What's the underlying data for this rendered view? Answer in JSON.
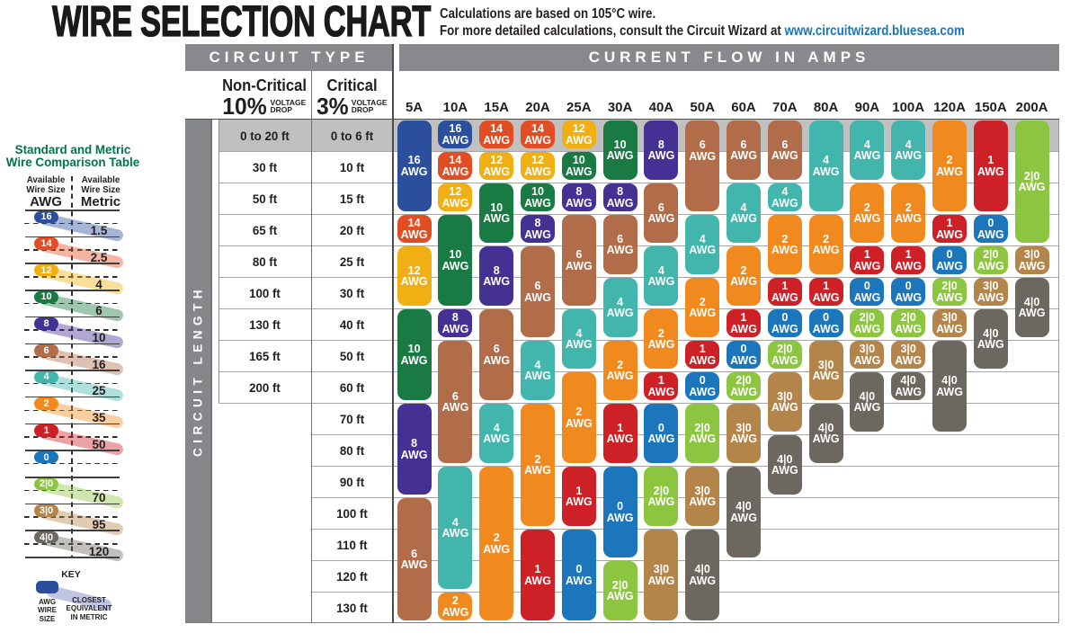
{
  "page_title": "WIRE SELECTION CHART",
  "notes": {
    "line1": "Calculations are based on 105°C wire.",
    "line2_prefix": "For more detailed calculations, consult the Circuit Wizard at ",
    "line2_link": "www.circuitwizard.bluesea.com",
    "link_color": "#1b75bc"
  },
  "comparison_table": {
    "title_line1": "Standard and Metric",
    "title_line2": "Wire Comparison Table",
    "title_color": "#00734a",
    "left_header_line1": "Available",
    "left_header_line2": "Wire Size",
    "left_unit": "AWG",
    "right_header_line1": "Available",
    "right_header_line2": "Wire Size",
    "right_unit": "Metric",
    "rows": [
      {
        "awg": "16",
        "metric": "1.5"
      },
      {
        "awg": "14",
        "metric": "2.5"
      },
      {
        "awg": "12",
        "metric": "4"
      },
      {
        "awg": "10",
        "metric": "6"
      },
      {
        "awg": "8",
        "metric": "10"
      },
      {
        "awg": "6",
        "metric": "16"
      },
      {
        "awg": "4",
        "metric": "25"
      },
      {
        "awg": "2",
        "metric": "35"
      },
      {
        "awg": "1",
        "metric": "50"
      },
      {
        "awg": "0",
        "metric": null
      },
      {
        "awg": "2|0",
        "metric": "70"
      },
      {
        "awg": "3|0",
        "metric": "95"
      },
      {
        "awg": "4|0",
        "metric": "120"
      }
    ],
    "key": {
      "label": "KEY",
      "awg_caption_lines": [
        "AWG",
        "WIRE",
        "SIZE"
      ],
      "metric_caption_lines": [
        "CLOSEST",
        "EQUIVALENT",
        "IN METRIC"
      ],
      "band_color": "#bfc5e3"
    }
  },
  "awg_colors": {
    "16": "#2b4f9c",
    "14": "#e24e24",
    "12": "#f0b013",
    "10": "#1a7a43",
    "8": "#453093",
    "6": "#b16c4a",
    "4": "#42b6ac",
    "2": "#f18a1e",
    "1": "#ce2127",
    "0": "#1c76bc",
    "2|0": "#8cc640",
    "3|0": "#b4854b",
    "4|0": "#6d685f"
  },
  "grays": {
    "header_band": "#87898c",
    "first_row_band": "#c1c0c0",
    "length_bar": "#85878a"
  },
  "chart_data": {
    "type": "table",
    "title": "WIRE SELECTION CHART",
    "circuit_type_header": "CIRCUIT TYPE",
    "current_flow_header": "CURRENT FLOW IN AMPS",
    "circuit_length_label": "CIRCUIT LENGTH",
    "non_critical": {
      "name": "Non-Critical",
      "percent": "10%",
      "qualifier_line1": "VOLTAGE",
      "qualifier_line2": "DROP"
    },
    "critical": {
      "name": "Critical",
      "percent": "3%",
      "qualifier_line1": "VOLTAGE",
      "qualifier_line2": "DROP"
    },
    "amp_columns": [
      "5A",
      "10A",
      "15A",
      "20A",
      "25A",
      "30A",
      "40A",
      "50A",
      "60A",
      "70A",
      "80A",
      "90A",
      "100A",
      "120A",
      "150A",
      "200A"
    ],
    "length_rows": [
      {
        "non_critical": "0 to 20 ft",
        "critical": "0 to 6 ft"
      },
      {
        "non_critical": "30 ft",
        "critical": "10 ft"
      },
      {
        "non_critical": "50 ft",
        "critical": "15 ft"
      },
      {
        "non_critical": "65 ft",
        "critical": "20 ft"
      },
      {
        "non_critical": "80 ft",
        "critical": "25 ft"
      },
      {
        "non_critical": "100 ft",
        "critical": "30 ft"
      },
      {
        "non_critical": "130 ft",
        "critical": "40 ft"
      },
      {
        "non_critical": "165 ft",
        "critical": "50 ft"
      },
      {
        "non_critical": "200 ft",
        "critical": "60 ft"
      },
      {
        "non_critical": null,
        "critical": "70 ft"
      },
      {
        "non_critical": null,
        "critical": "80 ft"
      },
      {
        "non_critical": null,
        "critical": "90 ft"
      },
      {
        "non_critical": null,
        "critical": "100 ft"
      },
      {
        "non_critical": null,
        "critical": "110 ft"
      },
      {
        "non_critical": null,
        "critical": "120 ft"
      },
      {
        "non_critical": null,
        "critical": "130 ft"
      }
    ],
    "awg_unit_label": "AWG",
    "selections": [
      {
        "amps": "5A",
        "pills": [
          {
            "awg": "16",
            "from_row": 1,
            "to_row": 3
          },
          {
            "awg": "14",
            "from_row": 4,
            "to_row": 4
          },
          {
            "awg": "12",
            "from_row": 5,
            "to_row": 6
          },
          {
            "awg": "10",
            "from_row": 7,
            "to_row": 9
          },
          {
            "awg": "8",
            "from_row": 10,
            "to_row": 12
          },
          {
            "awg": "6",
            "from_row": 13,
            "to_row": 16
          }
        ]
      },
      {
        "amps": "10A",
        "pills": [
          {
            "awg": "16",
            "from_row": 1,
            "to_row": 1
          },
          {
            "awg": "14",
            "from_row": 2,
            "to_row": 2
          },
          {
            "awg": "12",
            "from_row": 3,
            "to_row": 3
          },
          {
            "awg": "10",
            "from_row": 4,
            "to_row": 6
          },
          {
            "awg": "8",
            "from_row": 7,
            "to_row": 7
          },
          {
            "awg": "6",
            "from_row": 8,
            "to_row": 11
          },
          {
            "awg": "4",
            "from_row": 12,
            "to_row": 15
          },
          {
            "awg": "2",
            "from_row": 16,
            "to_row": 16
          }
        ]
      },
      {
        "amps": "15A",
        "pills": [
          {
            "awg": "14",
            "from_row": 1,
            "to_row": 1
          },
          {
            "awg": "12",
            "from_row": 2,
            "to_row": 2
          },
          {
            "awg": "10",
            "from_row": 3,
            "to_row": 4
          },
          {
            "awg": "8",
            "from_row": 5,
            "to_row": 6
          },
          {
            "awg": "6",
            "from_row": 7,
            "to_row": 9
          },
          {
            "awg": "4",
            "from_row": 10,
            "to_row": 11
          },
          {
            "awg": "2",
            "from_row": 12,
            "to_row": 16
          }
        ]
      },
      {
        "amps": "20A",
        "pills": [
          {
            "awg": "14",
            "from_row": 1,
            "to_row": 1
          },
          {
            "awg": "12",
            "from_row": 2,
            "to_row": 2
          },
          {
            "awg": "10",
            "from_row": 3,
            "to_row": 3
          },
          {
            "awg": "8",
            "from_row": 4,
            "to_row": 4
          },
          {
            "awg": "6",
            "from_row": 5,
            "to_row": 7
          },
          {
            "awg": "4",
            "from_row": 8,
            "to_row": 9
          },
          {
            "awg": "2",
            "from_row": 10,
            "to_row": 13
          },
          {
            "awg": "1",
            "from_row": 14,
            "to_row": 16
          }
        ]
      },
      {
        "amps": "25A",
        "pills": [
          {
            "awg": "12",
            "from_row": 1,
            "to_row": 1
          },
          {
            "awg": "10",
            "from_row": 2,
            "to_row": 2
          },
          {
            "awg": "8",
            "from_row": 3,
            "to_row": 3
          },
          {
            "awg": "6",
            "from_row": 4,
            "to_row": 6
          },
          {
            "awg": "4",
            "from_row": 7,
            "to_row": 8
          },
          {
            "awg": "2",
            "from_row": 9,
            "to_row": 11
          },
          {
            "awg": "1",
            "from_row": 12,
            "to_row": 13
          },
          {
            "awg": "0",
            "from_row": 14,
            "to_row": 16
          }
        ]
      },
      {
        "amps": "30A",
        "pills": [
          {
            "awg": "10",
            "from_row": 1,
            "to_row": 2
          },
          {
            "awg": "8",
            "from_row": 3,
            "to_row": 3
          },
          {
            "awg": "6",
            "from_row": 4,
            "to_row": 5
          },
          {
            "awg": "4",
            "from_row": 6,
            "to_row": 7
          },
          {
            "awg": "2",
            "from_row": 8,
            "to_row": 9
          },
          {
            "awg": "1",
            "from_row": 10,
            "to_row": 11
          },
          {
            "awg": "0",
            "from_row": 12,
            "to_row": 14
          },
          {
            "awg": "2|0",
            "from_row": 15,
            "to_row": 16
          }
        ]
      },
      {
        "amps": "40A",
        "pills": [
          {
            "awg": "8",
            "from_row": 1,
            "to_row": 2
          },
          {
            "awg": "6",
            "from_row": 3,
            "to_row": 4
          },
          {
            "awg": "4",
            "from_row": 5,
            "to_row": 6
          },
          {
            "awg": "2",
            "from_row": 7,
            "to_row": 8
          },
          {
            "awg": "1",
            "from_row": 9,
            "to_row": 9
          },
          {
            "awg": "0",
            "from_row": 10,
            "to_row": 11
          },
          {
            "awg": "2|0",
            "from_row": 12,
            "to_row": 13
          },
          {
            "awg": "3|0",
            "from_row": 14,
            "to_row": 16
          }
        ]
      },
      {
        "amps": "50A",
        "pills": [
          {
            "awg": "6",
            "from_row": 1,
            "to_row": 3,
            "label_rows": [
              1,
              2
            ]
          },
          {
            "awg": "4",
            "from_row": 4,
            "to_row": 5
          },
          {
            "awg": "2",
            "from_row": 6,
            "to_row": 7
          },
          {
            "awg": "1",
            "from_row": 8,
            "to_row": 8
          },
          {
            "awg": "0",
            "from_row": 9,
            "to_row": 9
          },
          {
            "awg": "2|0",
            "from_row": 10,
            "to_row": 11
          },
          {
            "awg": "3|0",
            "from_row": 12,
            "to_row": 13
          },
          {
            "awg": "4|0",
            "from_row": 14,
            "to_row": 16
          }
        ]
      },
      {
        "amps": "60A",
        "pills": [
          {
            "awg": "6",
            "from_row": 1,
            "to_row": 2
          },
          {
            "awg": "4",
            "from_row": 3,
            "to_row": 4
          },
          {
            "awg": "2",
            "from_row": 5,
            "to_row": 6
          },
          {
            "awg": "1",
            "from_row": 7,
            "to_row": 7
          },
          {
            "awg": "0",
            "from_row": 8,
            "to_row": 8
          },
          {
            "awg": "2|0",
            "from_row": 9,
            "to_row": 9
          },
          {
            "awg": "3|0",
            "from_row": 10,
            "to_row": 11
          },
          {
            "awg": "4|0",
            "from_row": 12,
            "to_row": 14
          }
        ]
      },
      {
        "amps": "70A",
        "pills": [
          {
            "awg": "6",
            "from_row": 1,
            "to_row": 2
          },
          {
            "awg": "4",
            "from_row": 3,
            "to_row": 3
          },
          {
            "awg": "2",
            "from_row": 4,
            "to_row": 5
          },
          {
            "awg": "1",
            "from_row": 6,
            "to_row": 6
          },
          {
            "awg": "0",
            "from_row": 7,
            "to_row": 7
          },
          {
            "awg": "2|0",
            "from_row": 8,
            "to_row": 8
          },
          {
            "awg": "3|0",
            "from_row": 9,
            "to_row": 10
          },
          {
            "awg": "4|0",
            "from_row": 11,
            "to_row": 12
          }
        ]
      },
      {
        "amps": "80A",
        "pills": [
          {
            "awg": "4",
            "from_row": 1,
            "to_row": 3
          },
          {
            "awg": "2",
            "from_row": 4,
            "to_row": 5
          },
          {
            "awg": "1",
            "from_row": 6,
            "to_row": 6
          },
          {
            "awg": "0",
            "from_row": 7,
            "to_row": 7
          },
          {
            "awg": "3|0",
            "from_row": 8,
            "to_row": 9
          },
          {
            "awg": "4|0",
            "from_row": 10,
            "to_row": 11
          }
        ]
      },
      {
        "amps": "90A",
        "pills": [
          {
            "awg": "4",
            "from_row": 1,
            "to_row": 2
          },
          {
            "awg": "2",
            "from_row": 3,
            "to_row": 4
          },
          {
            "awg": "1",
            "from_row": 5,
            "to_row": 5
          },
          {
            "awg": "0",
            "from_row": 6,
            "to_row": 6
          },
          {
            "awg": "2|0",
            "from_row": 7,
            "to_row": 7
          },
          {
            "awg": "3|0",
            "from_row": 8,
            "to_row": 8
          },
          {
            "awg": "4|0",
            "from_row": 9,
            "to_row": 10
          }
        ]
      },
      {
        "amps": "100A",
        "pills": [
          {
            "awg": "4",
            "from_row": 1,
            "to_row": 2
          },
          {
            "awg": "2",
            "from_row": 3,
            "to_row": 4
          },
          {
            "awg": "1",
            "from_row": 5,
            "to_row": 5
          },
          {
            "awg": "0",
            "from_row": 6,
            "to_row": 6
          },
          {
            "awg": "2|0",
            "from_row": 7,
            "to_row": 7
          },
          {
            "awg": "3|0",
            "from_row": 8,
            "to_row": 8
          },
          {
            "awg": "4|0",
            "from_row": 9,
            "to_row": 9
          }
        ]
      },
      {
        "amps": "120A",
        "pills": [
          {
            "awg": "2",
            "from_row": 1,
            "to_row": 3
          },
          {
            "awg": "1",
            "from_row": 4,
            "to_row": 4
          },
          {
            "awg": "0",
            "from_row": 5,
            "to_row": 5
          },
          {
            "awg": "2|0",
            "from_row": 6,
            "to_row": 6
          },
          {
            "awg": "3|0",
            "from_row": 7,
            "to_row": 7
          },
          {
            "awg": "4|0",
            "from_row": 8,
            "to_row": 10
          }
        ]
      },
      {
        "amps": "150A",
        "pills": [
          {
            "awg": "1",
            "from_row": 1,
            "to_row": 3
          },
          {
            "awg": "0",
            "from_row": 4,
            "to_row": 4
          },
          {
            "awg": "2|0",
            "from_row": 5,
            "to_row": 5
          },
          {
            "awg": "3|0",
            "from_row": 6,
            "to_row": 6
          },
          {
            "awg": "4|0",
            "from_row": 7,
            "to_row": 8
          }
        ]
      },
      {
        "amps": "200A",
        "pills": [
          {
            "awg": "2|0",
            "from_row": 1,
            "to_row": 4
          },
          {
            "awg": "3|0",
            "from_row": 5,
            "to_row": 5
          },
          {
            "awg": "4|0",
            "from_row": 6,
            "to_row": 7
          }
        ]
      }
    ]
  }
}
